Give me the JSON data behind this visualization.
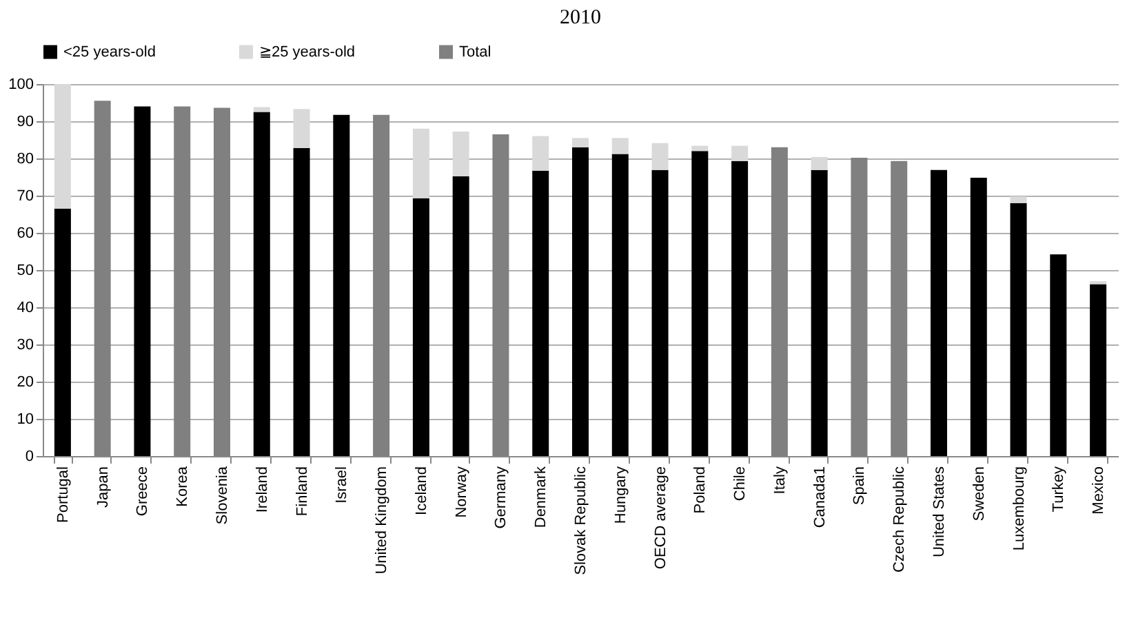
{
  "chart_data": {
    "type": "bar",
    "title": "2010",
    "stacked": true,
    "categories": [
      "Portugal",
      "Japan",
      "Greece",
      "Korea",
      "Slovenia",
      "Ireland",
      "Finland",
      "Israel",
      "United Kingdom",
      "Iceland",
      "Norway",
      "Germany",
      "Denmark",
      "Slovak Republic",
      "Hungary",
      "OECD average",
      "Poland",
      "Chile",
      "Italy",
      "Canada1",
      "Spain",
      "Czech Republic",
      "United States",
      "Sweden",
      "Luxembourg",
      "Turkey",
      "Mexico"
    ],
    "series": [
      {
        "name": "<25 years-old",
        "color": "#000000",
        "values": [
          66.5,
          null,
          94,
          null,
          null,
          92.5,
          82.8,
          91.7,
          null,
          69.3,
          75.2,
          null,
          76.7,
          83.0,
          81.2,
          76.9,
          82.0,
          79.3,
          null,
          76.9,
          null,
          null,
          76.9,
          74.8,
          68.0,
          54.2,
          46.2
        ]
      },
      {
        "name": "≧25 years-old",
        "color": "#d9d9d9",
        "values": [
          33.5,
          null,
          null,
          null,
          null,
          1.3,
          10.5,
          null,
          null,
          18.7,
          12.0,
          null,
          9.3,
          2.5,
          4.3,
          7.2,
          1.4,
          4.1,
          null,
          3.5,
          null,
          null,
          null,
          null,
          1.8,
          null,
          0.8
        ]
      },
      {
        "name": "Total",
        "color": "#808080",
        "values": [
          null,
          95.5,
          null,
          94,
          93.6,
          null,
          null,
          null,
          91.7,
          null,
          null,
          86.5,
          null,
          null,
          null,
          null,
          null,
          null,
          83.0,
          null,
          80.2,
          79.3,
          null,
          null,
          null,
          null,
          null
        ]
      }
    ],
    "ylim": [
      0,
      100
    ],
    "yticks": [
      0,
      10,
      20,
      30,
      40,
      50,
      60,
      70,
      80,
      90,
      100
    ],
    "grid": "y",
    "legend": "top"
  }
}
